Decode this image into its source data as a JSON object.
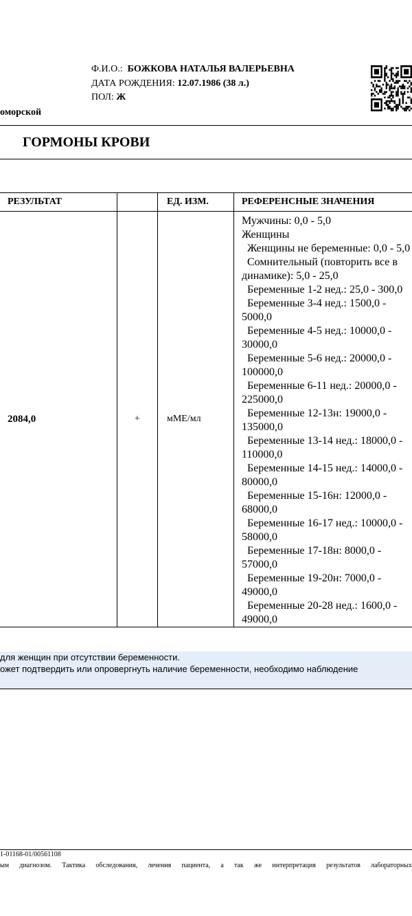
{
  "header": {
    "fio_label": "Ф.И.О.:",
    "fio": "БОЖКОВА НАТАЛЬЯ ВАЛЕРЬЕВНА",
    "birth_label": "ДАТА РОЖДЕНИЯ:",
    "birth": "12.07.1986 (38 л.)",
    "sex_label": "ПОЛ:",
    "sex": "Ж",
    "org_fragment": "оморской"
  },
  "section_title": "ГОРМОНЫ КРОВИ",
  "table": {
    "headers": [
      "РЕЗУЛЬТАТ",
      "",
      "ЕД. ИЗМ.",
      "РЕФЕРЕНСНЫЕ ЗНАЧЕНИЯ"
    ],
    "result": "2084,0",
    "flag": "+",
    "unit": "мМЕ/мл",
    "reference": [
      "Мужчины: 0,0 - 5,0",
      "Женщины",
      "Женщины не беременные: 0,0 - 5,0",
      "Сомнительный (повторить все в динамике): 5,0 - 25,0",
      "Беременные 1-2 нед.: 25,0 - 300,0",
      "Беременные 3-4 нед.: 1500,0 - 5000,0",
      "Беременные 4-5 нед.: 10000,0 - 30000,0",
      "Беременные 5-6 нед.: 20000,0 - 100000,0",
      "Беременные 6-11 нед.: 20000,0 - 225000,0",
      "Беременные 12-13н: 19000,0 - 135000,0",
      "Беременные 13-14 нед.: 18000,0 - 110000,0",
      "Беременные 14-15 нед.: 14000,0 - 80000,0",
      "Беременные 15-16н: 12000,0 - 68000,0",
      "Беременные 16-17 нед.: 10000,0 - 58000,0",
      "Беременные 17-18н: 8000,0 - 57000,0",
      "Беременные 19-20н: 7000,0 - 49000,0",
      "Беременные 20-28 нед.: 1600,0 - 49000,0"
    ]
  },
  "note": [
    " для женщин при отсутствии беременности.",
    "ожет подтвердить или опровергнуть наличие беременности, необходимо наблюдение"
  ],
  "footer": {
    "code": "1-01168-01/00561108",
    "disclaimer": "ым диагнозом. Тактика обследования, лечения пациента, а так же интерпретация результатов лабораторных"
  }
}
